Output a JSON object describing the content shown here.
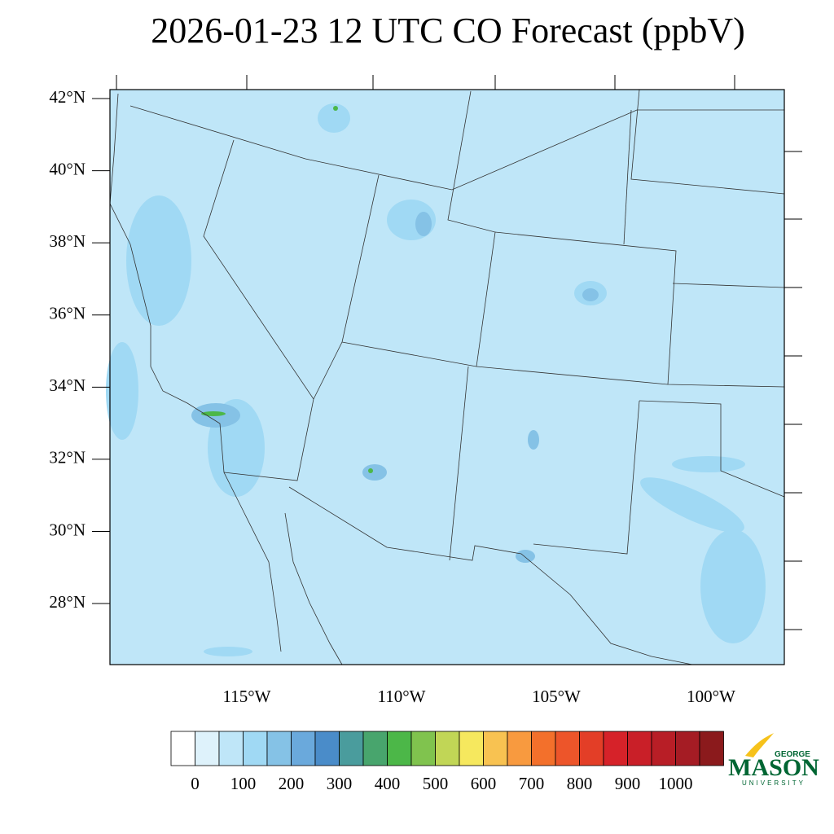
{
  "map": {
    "title": "2026-01-23 12 UTC CO Forecast (ppbV)",
    "lat_ticks": [
      {
        "value": 42,
        "label": "42°N"
      },
      {
        "value": 40,
        "label": "40°N"
      },
      {
        "value": 38,
        "label": "38°N"
      },
      {
        "value": 36,
        "label": "36°N"
      },
      {
        "value": 34,
        "label": "34°N"
      },
      {
        "value": 32,
        "label": "32°N"
      },
      {
        "value": 30,
        "label": "30°N"
      },
      {
        "value": 28,
        "label": "28°N"
      }
    ],
    "lon_ticks": [
      {
        "value": -115,
        "label": "115°W"
      },
      {
        "value": -110,
        "label": "110°W"
      },
      {
        "value": -105,
        "label": "105°W"
      },
      {
        "value": -100,
        "label": "100°W"
      }
    ],
    "colorbar": {
      "labels": [
        0,
        100,
        200,
        300,
        400,
        500,
        600,
        700,
        800,
        900,
        1000
      ],
      "colors": [
        "#ffffff",
        "#def2fb",
        "#bfe6f8",
        "#a0d9f4",
        "#85c2e6",
        "#6aa9dc",
        "#4a8cc9",
        "#4a9c9d",
        "#48a56d",
        "#4cb748",
        "#80c34e",
        "#c1d656",
        "#f6e85e",
        "#f8c251",
        "#f89a3f",
        "#f3702b",
        "#ed552a",
        "#e33e27",
        "#d62229",
        "#c91f28",
        "#b81e26",
        "#a51c24",
        "#8b1a1c"
      ]
    }
  },
  "logo": {
    "top": "GEORGE",
    "name": "MASON",
    "bottom": "UNIVERSITY"
  }
}
